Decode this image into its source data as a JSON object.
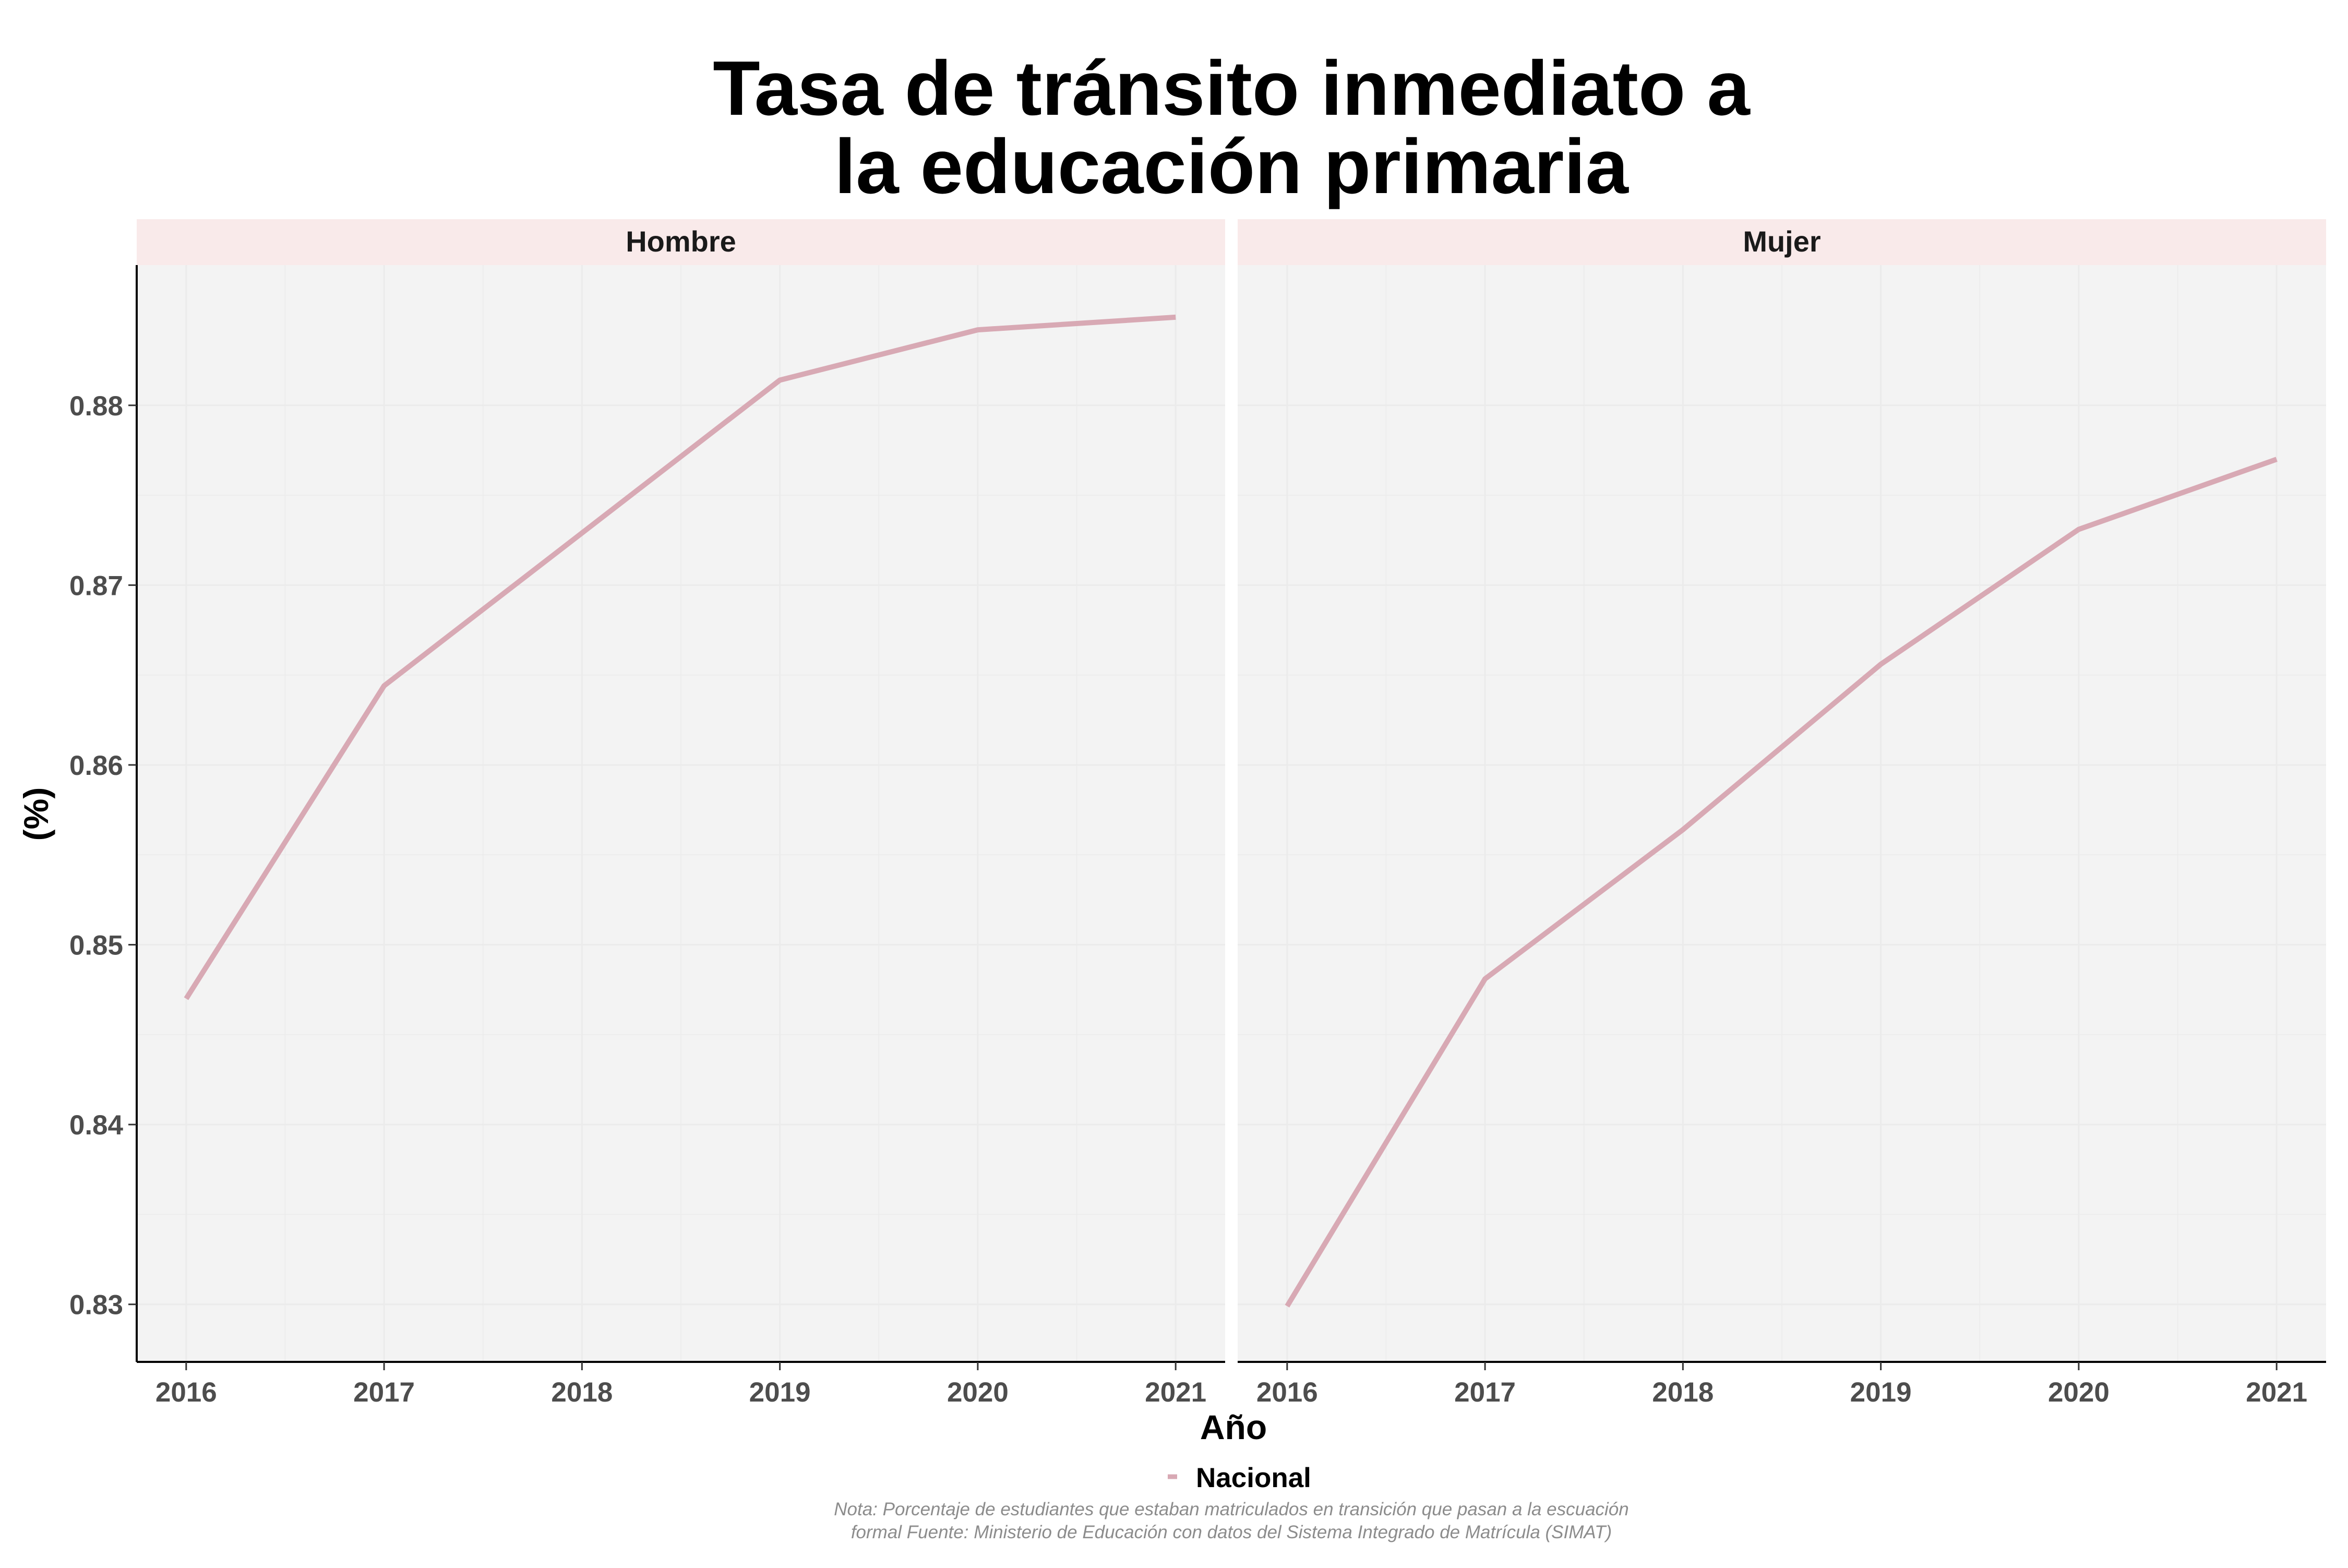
{
  "chart_data": {
    "type": "line",
    "title_lines": [
      "Tasa de tránsito inmediato a",
      "la educación primaria"
    ],
    "xlabel": "Año",
    "ylabel": "(%)",
    "x": [
      2016,
      2017,
      2018,
      2019,
      2020,
      2021
    ],
    "x_ticks": [
      "2016",
      "2017",
      "2018",
      "2019",
      "2020",
      "2021"
    ],
    "y_ticks": [
      "0.83",
      "0.84",
      "0.85",
      "0.86",
      "0.87",
      "0.88"
    ],
    "y_tick_values": [
      0.83,
      0.84,
      0.85,
      0.86,
      0.87,
      0.88
    ],
    "ylim": [
      0.8268,
      0.8878
    ],
    "xlim": [
      2015.75,
      2021.25
    ],
    "grid": true,
    "legend_position": "bottom",
    "legend": [
      "Nacional"
    ],
    "panels": [
      {
        "label": "Hombre",
        "series": [
          {
            "name": "Nacional",
            "values": [
              0.847,
              0.8644,
              0.8729,
              0.8814,
              0.8842,
              0.8849
            ]
          }
        ]
      },
      {
        "label": "Mujer",
        "series": [
          {
            "name": "Nacional",
            "values": [
              0.8299,
              0.8481,
              0.8564,
              0.8656,
              0.8731,
              0.877
            ]
          }
        ]
      }
    ],
    "note_lines": [
      "Nota: Porcentaje de estudiantes que estaban matriculados en transición que pasan a la escuación",
      "formal Fuente: Ministerio de Educación con datos del Sistema Integrado de Matrícula (SIMAT)"
    ]
  },
  "colors": {
    "line": "#d8a9b4",
    "panel_background": "#f3f3f3",
    "strip_background": "#f9eaea",
    "grid": "#ebebeb",
    "axis": "#000000"
  }
}
